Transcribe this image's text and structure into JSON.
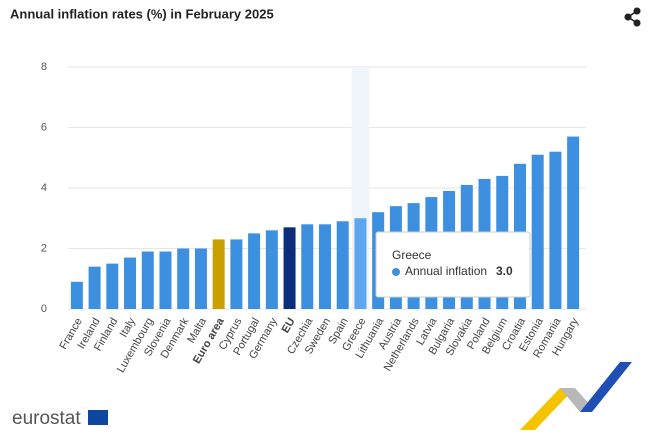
{
  "chart_data": {
    "type": "bar",
    "title": "Annual inflation rates (%) in February 2025",
    "categories": [
      "France",
      "Ireland",
      "Finland",
      "Italy",
      "Luxembourg",
      "Slovenia",
      "Denmark",
      "Malta",
      "Euro area",
      "Cyprus",
      "Portugal",
      "Germany",
      "EU",
      "Czechia",
      "Sweden",
      "Spain",
      "Greece",
      "Lithuania",
      "Austria",
      "Netherlands",
      "Latvia",
      "Bulgaria",
      "Slovakia",
      "Poland",
      "Belgium",
      "Croatia",
      "Estonia",
      "Romania",
      "Hungary"
    ],
    "series": [
      {
        "name": "Annual inflation",
        "color": "#3d8fe0",
        "values": [
          0.9,
          1.4,
          1.5,
          1.7,
          1.9,
          1.9,
          2.0,
          2.0,
          2.3,
          2.3,
          2.5,
          2.6,
          2.7,
          2.8,
          2.8,
          2.9,
          3.0,
          3.2,
          3.4,
          3.5,
          3.7,
          3.9,
          4.1,
          4.3,
          4.4,
          4.8,
          5.1,
          5.2,
          5.7
        ]
      }
    ],
    "highlight_colors": {
      "8": "#c9a000",
      "12": "#0b2d7c",
      "16": "#5ea6f0"
    },
    "emphasis": [
      8,
      12
    ],
    "ylim": [
      0,
      8
    ],
    "yticks": [
      0,
      2,
      4,
      6,
      8
    ],
    "grid": true,
    "tooltip": {
      "category": "Greece",
      "series": "Annual inflation",
      "value": "3.0",
      "index": 16
    },
    "logo": "eurostat"
  }
}
